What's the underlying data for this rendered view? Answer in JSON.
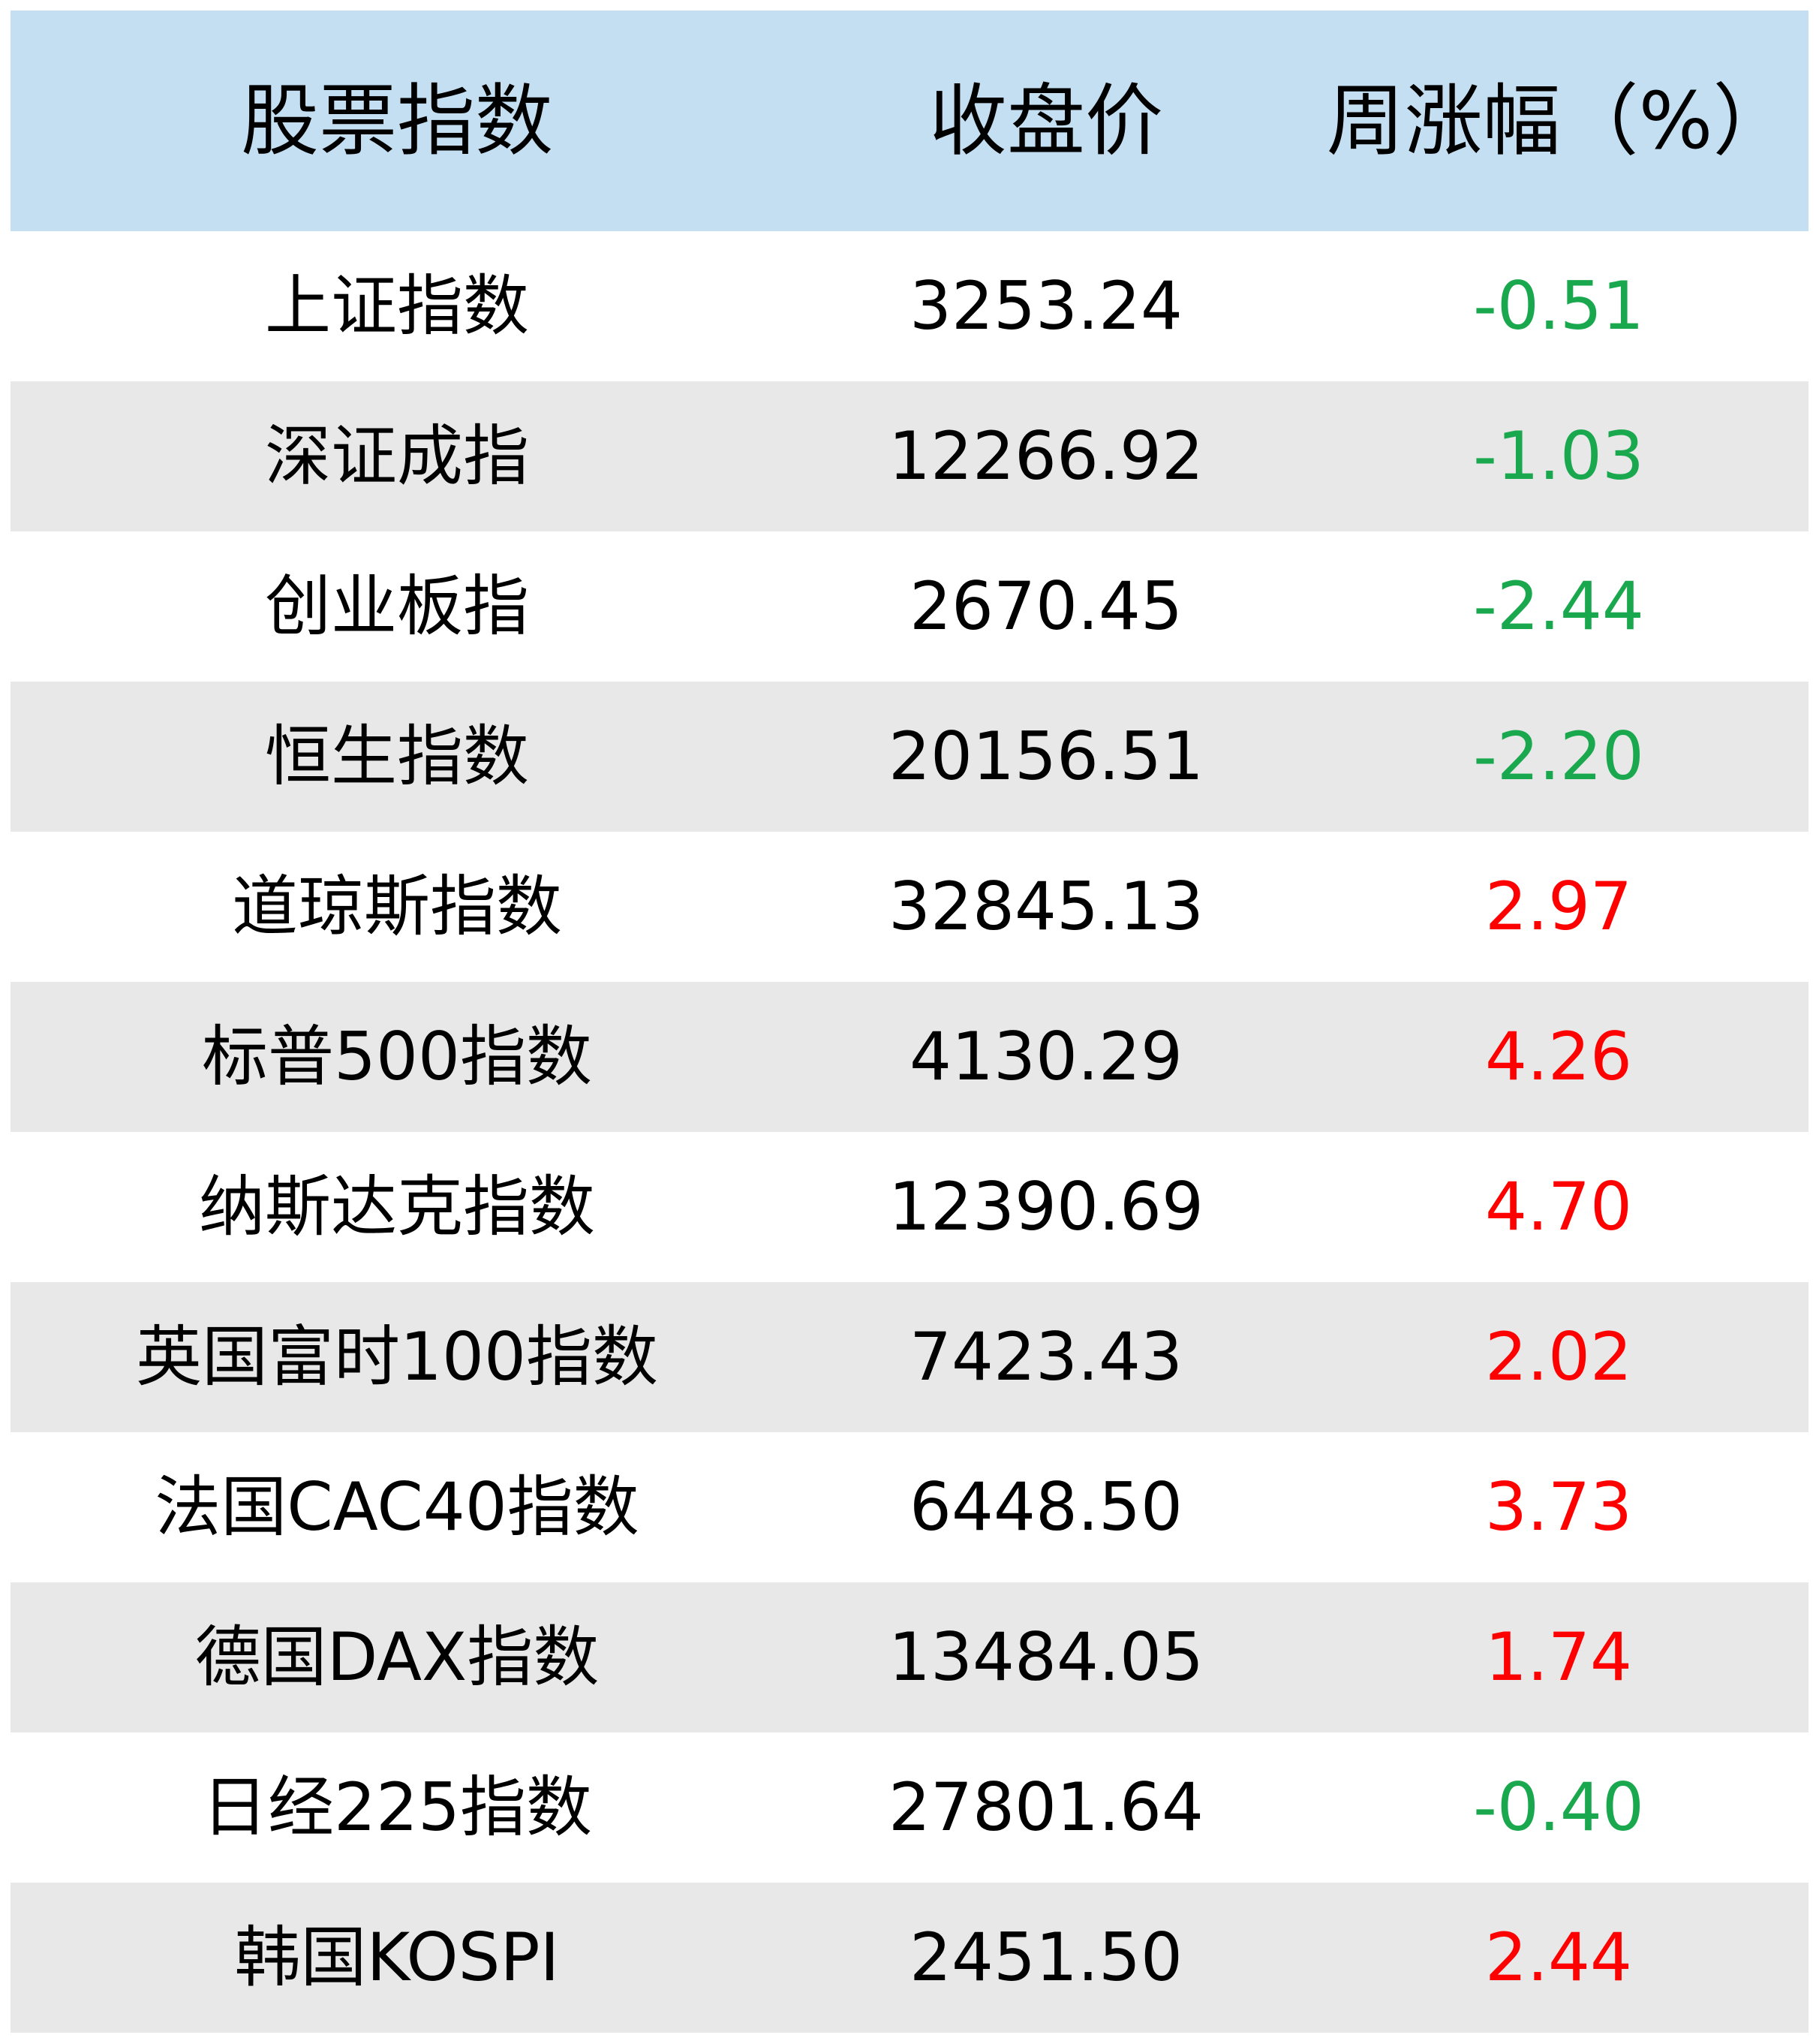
{
  "header": {
    "col_index": "股票指数",
    "col_close": "收盘价",
    "col_change": "周涨幅（%）"
  },
  "colors": {
    "header_bg": "#c5dff2",
    "shade_bg": "#e8e8e8",
    "down": "#1aa84e",
    "up": "#ff0000"
  },
  "rows": [
    {
      "name": "上证指数",
      "close": "3253.24",
      "change": "-0.51",
      "dir": "down"
    },
    {
      "name": "深证成指",
      "close": "12266.92",
      "change": "-1.03",
      "dir": "down"
    },
    {
      "name": "创业板指",
      "close": "2670.45",
      "change": "-2.44",
      "dir": "down"
    },
    {
      "name": "恒生指数",
      "close": "20156.51",
      "change": "-2.20",
      "dir": "down"
    },
    {
      "name": "道琼斯指数",
      "close": "32845.13",
      "change": "2.97",
      "dir": "up"
    },
    {
      "name": "标普500指数",
      "close": "4130.29",
      "change": "4.26",
      "dir": "up"
    },
    {
      "name": "纳斯达克指数",
      "close": "12390.69",
      "change": "4.70",
      "dir": "up"
    },
    {
      "name": "英国富时100指数",
      "close": "7423.43",
      "change": "2.02",
      "dir": "up"
    },
    {
      "name": "法国CAC40指数",
      "close": "6448.50",
      "change": "3.73",
      "dir": "up"
    },
    {
      "name": "德国DAX指数",
      "close": "13484.05",
      "change": "1.74",
      "dir": "up"
    },
    {
      "name": "日经225指数",
      "close": "27801.64",
      "change": "-0.40",
      "dir": "down"
    },
    {
      "name": "韩国KOSPI",
      "close": "2451.50",
      "change": "2.44",
      "dir": "up"
    }
  ]
}
